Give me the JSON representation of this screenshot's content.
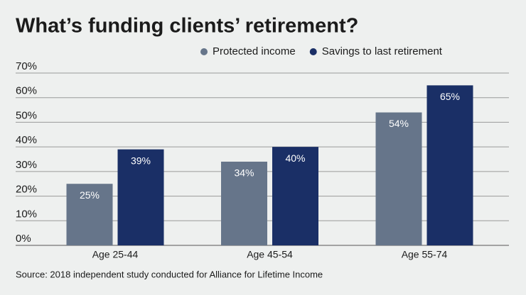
{
  "chart_data": {
    "type": "bar",
    "title": "What’s funding clients’ retirement?",
    "categories": [
      "Age 25-44",
      "Age 45-54",
      "Age 55-74"
    ],
    "series": [
      {
        "name": "Protected income",
        "color": "#66758a",
        "values": [
          25,
          34,
          54
        ],
        "value_labels": [
          "25%",
          "34%",
          "54%"
        ]
      },
      {
        "name": "Savings to last retirement",
        "color": "#1a2f66",
        "values": [
          39,
          40,
          65
        ],
        "value_labels": [
          "39%",
          "40%",
          "65%"
        ]
      }
    ],
    "ylim": [
      0,
      70
    ],
    "yticks": [
      {
        "value": 0,
        "label": "0%"
      },
      {
        "value": 10,
        "label": "10%"
      },
      {
        "value": 20,
        "label": "20%"
      },
      {
        "value": 30,
        "label": "30%"
      },
      {
        "value": 40,
        "label": "40%"
      },
      {
        "value": 50,
        "label": "50%"
      },
      {
        "value": 60,
        "label": "60%"
      },
      {
        "value": 70,
        "label": "70%"
      }
    ],
    "grid": true,
    "source": "Source: 2018 independent study conducted for Alliance for Lifetime Income"
  }
}
